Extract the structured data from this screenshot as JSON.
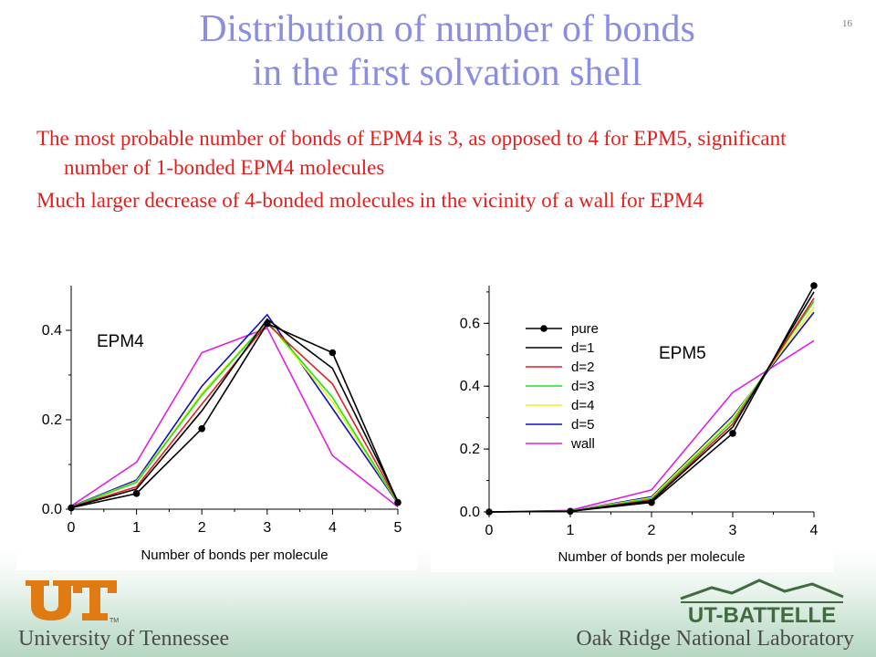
{
  "slide": {
    "title_line1": "Distribution of number of bonds",
    "title_line2": "in the first solvation shell",
    "slide_number": "16",
    "bullets": [
      "The most probable number of bonds of EPM4 is 3, as opposed to 4 for EPM5, significant number of 1-bonded EPM4 molecules",
      "Much larger decrease of 4-bonded molecules in the vicinity of a wall for EPM4"
    ],
    "footer_left": "University of Tennessee",
    "footer_right": "Oak Ridge National Laboratory",
    "logo_right_text": "UT-BATTELLE",
    "logo_left_tm": "TM"
  },
  "colors": {
    "title": "#8a8de0",
    "bullets": "#e0201e",
    "ut_orange": "#e07a12",
    "battelle_green": "#3f6b3f"
  },
  "chart_data": [
    {
      "type": "line",
      "title": "EPM4",
      "xlabel": "Number of bonds per molecule",
      "ylabel": "",
      "x": [
        0,
        1,
        2,
        3,
        4,
        5
      ],
      "xlim": [
        0,
        5
      ],
      "ylim": [
        0,
        0.5
      ],
      "xticks": [
        "0",
        "1",
        "2",
        "3",
        "4",
        "5"
      ],
      "yticks": [
        {
          "v": 0.0,
          "label": "0.0"
        },
        {
          "v": 0.2,
          "label": "0.2"
        },
        {
          "v": 0.4,
          "label": "0.4"
        }
      ],
      "legend": false,
      "series": [
        {
          "name": "pure",
          "color": "#000000",
          "markers": true,
          "values": [
            0.003,
            0.035,
            0.18,
            0.415,
            0.35,
            0.015
          ]
        },
        {
          "name": "d=1",
          "color": "#000000",
          "markers": false,
          "values": [
            0.004,
            0.045,
            0.22,
            0.425,
            0.315,
            0.018
          ]
        },
        {
          "name": "d=2",
          "color": "#e02020",
          "markers": false,
          "values": [
            0.005,
            0.05,
            0.235,
            0.415,
            0.28,
            0.016
          ]
        },
        {
          "name": "d=3",
          "color": "#20e020",
          "markers": false,
          "values": [
            0.005,
            0.06,
            0.255,
            0.42,
            0.25,
            0.014
          ]
        },
        {
          "name": "d=4",
          "color": "#f0f020",
          "markers": false,
          "values": [
            0.005,
            0.062,
            0.26,
            0.42,
            0.24,
            0.014
          ]
        },
        {
          "name": "d=5",
          "color": "#1010c0",
          "markers": false,
          "values": [
            0.006,
            0.065,
            0.275,
            0.435,
            0.225,
            0.013
          ]
        },
        {
          "name": "wall",
          "color": "#e020e0",
          "markers": false,
          "values": [
            0.007,
            0.105,
            0.35,
            0.405,
            0.12,
            0.005
          ]
        }
      ]
    },
    {
      "type": "line",
      "title": "EPM5",
      "xlabel": "Number of bonds per molecule",
      "ylabel": "",
      "x": [
        0,
        1,
        2,
        3,
        4
      ],
      "xlim": [
        0,
        4
      ],
      "ylim": [
        0,
        0.72
      ],
      "xticks": [
        "0",
        "1",
        "2",
        "3",
        "4"
      ],
      "yticks": [
        {
          "v": 0.0,
          "label": "0.0"
        },
        {
          "v": 0.2,
          "label": "0.2"
        },
        {
          "v": 0.4,
          "label": "0.4"
        },
        {
          "v": 0.6,
          "label": "0.6"
        }
      ],
      "legend": true,
      "legend_position": "upper-left",
      "series": [
        {
          "name": "pure",
          "color": "#000000",
          "markers": true,
          "values": [
            0.0,
            0.002,
            0.03,
            0.25,
            0.72
          ]
        },
        {
          "name": "d=1",
          "color": "#000000",
          "markers": false,
          "values": [
            0.0,
            0.002,
            0.035,
            0.27,
            0.7
          ]
        },
        {
          "name": "d=2",
          "color": "#e02020",
          "markers": false,
          "values": [
            0.0,
            0.002,
            0.038,
            0.28,
            0.68
          ]
        },
        {
          "name": "d=3",
          "color": "#20e020",
          "markers": false,
          "values": [
            0.0,
            0.003,
            0.042,
            0.29,
            0.67
          ]
        },
        {
          "name": "d=4",
          "color": "#f0f020",
          "markers": false,
          "values": [
            0.0,
            0.003,
            0.045,
            0.3,
            0.65
          ]
        },
        {
          "name": "d=5",
          "color": "#1010c0",
          "markers": false,
          "values": [
            0.0,
            0.003,
            0.048,
            0.305,
            0.635
          ]
        },
        {
          "name": "wall",
          "color": "#e020e0",
          "markers": false,
          "values": [
            0.0,
            0.005,
            0.07,
            0.38,
            0.545
          ]
        }
      ]
    }
  ]
}
